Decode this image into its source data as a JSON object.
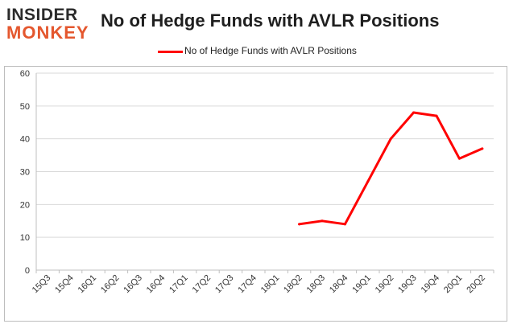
{
  "brand": {
    "line1": "INSIDER",
    "line2": "MONKEY"
  },
  "colors": {
    "series": "#ff0000",
    "brand_accent": "#e4572e",
    "grid": "#d9d9d9"
  },
  "chart_data": {
    "type": "line",
    "title": "No of Hedge Funds with AVLR Positions",
    "xlabel": "",
    "ylabel": "",
    "categories": [
      "15Q3",
      "15Q4",
      "16Q1",
      "16Q2",
      "16Q3",
      "16Q4",
      "17Q1",
      "17Q2",
      "17Q3",
      "17Q4",
      "18Q1",
      "18Q2",
      "18Q3",
      "18Q4",
      "19Q1",
      "19Q2",
      "19Q3",
      "19Q4",
      "20Q1",
      "20Q2"
    ],
    "y_ticks": [
      0,
      10,
      20,
      30,
      40,
      50,
      60
    ],
    "ylim": [
      0,
      60
    ],
    "grid": true,
    "legend_position": "top-center",
    "series": [
      {
        "name": "No of Hedge Funds with AVLR Positions",
        "values": [
          null,
          null,
          null,
          null,
          null,
          null,
          null,
          null,
          null,
          null,
          null,
          14,
          15,
          14,
          27,
          40,
          48,
          47,
          34,
          37
        ]
      }
    ]
  }
}
